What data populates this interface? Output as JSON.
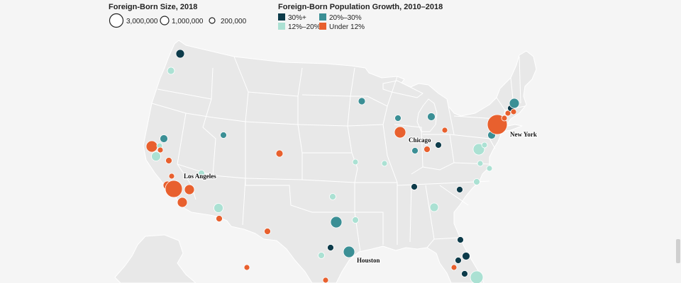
{
  "legend": {
    "size": {
      "title": "Foreign-Born Size, 2018",
      "items": [
        {
          "label": "3,000,000",
          "value": 3000000
        },
        {
          "label": "1,000,000",
          "value": 1000000
        },
        {
          "label": "200,000",
          "value": 200000
        }
      ]
    },
    "growth": {
      "title": "Foreign-Born Population Growth, 2010–2018",
      "items": [
        {
          "label": "30%+",
          "color": "#0d3b4a"
        },
        {
          "label": "20%–30%",
          "color": "#3b8f95"
        },
        {
          "label": "12%–20%",
          "color": "#abe1d3"
        },
        {
          "label": "Under 12%",
          "color": "#e8602e"
        }
      ]
    }
  },
  "city_labels": [
    "New York",
    "Los Angeles",
    "Chicago",
    "Houston"
  ],
  "map": {
    "land": "#e8e8e8",
    "borders": "#ffffff"
  }
}
